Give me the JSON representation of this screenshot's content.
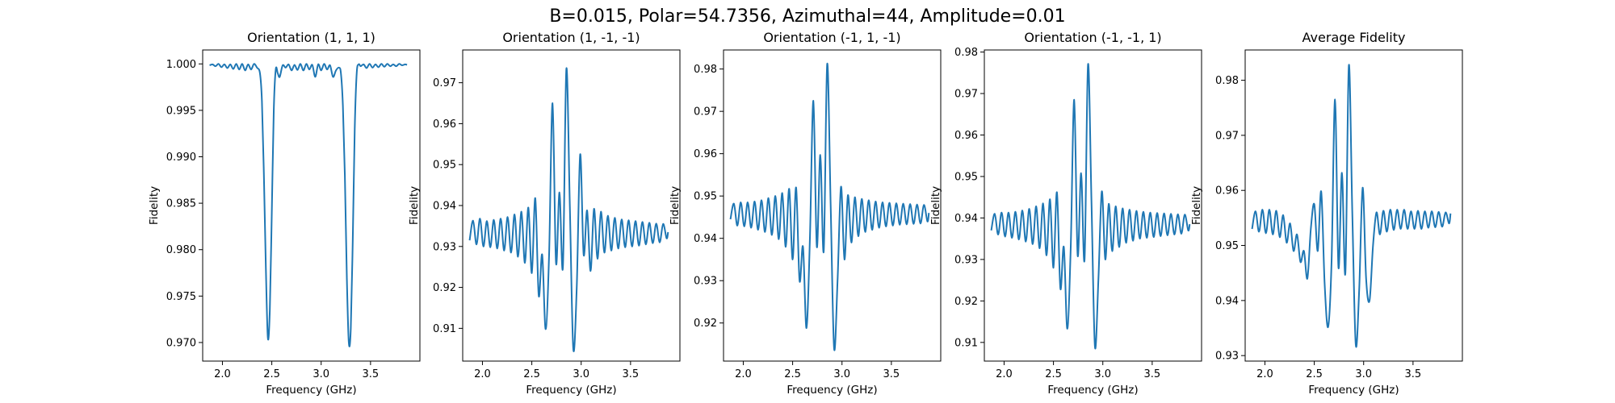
{
  "figure_title": "B=0.015, Polar=54.7356, Azimuthal=44, Amplitude=0.01",
  "line_color": "#1f77b4",
  "chart_data": [
    {
      "type": "line",
      "title": "Orientation (1, 1, 1)",
      "xlabel": "Frequency (GHz)",
      "ylabel": "Fidelity",
      "xlim": [
        1.8,
        4.0
      ],
      "ylim": [
        0.968,
        1.0015
      ],
      "xticks": [
        2.0,
        2.5,
        3.0,
        3.5
      ],
      "xtick_labels": [
        "2.0",
        "2.5",
        "3.0",
        "3.5"
      ],
      "yticks": [
        0.97,
        0.975,
        0.98,
        0.985,
        0.99,
        0.995,
        1.0
      ],
      "ytick_labels": [
        "0.970",
        "0.975",
        "0.980",
        "0.985",
        "0.990",
        "0.995",
        "1.000"
      ],
      "grid": false,
      "series": [
        {
          "x": [
            1.87,
            1.9,
            1.93,
            1.96,
            1.99,
            2.02,
            2.05,
            2.08,
            2.11,
            2.14,
            2.17,
            2.2,
            2.23,
            2.26,
            2.29,
            2.32,
            2.35,
            2.38,
            2.4,
            2.42,
            2.44,
            2.46,
            2.48,
            2.5,
            2.52,
            2.54,
            2.56,
            2.58,
            2.61,
            2.64,
            2.67,
            2.7,
            2.73,
            2.76,
            2.79,
            2.82,
            2.85,
            2.88,
            2.91,
            2.94,
            2.97,
            3.0,
            3.03,
            3.06,
            3.09,
            3.12,
            3.15,
            3.18,
            3.2,
            3.22,
            3.24,
            3.26,
            3.28,
            3.3,
            3.32,
            3.34,
            3.36,
            3.38,
            3.4,
            3.43,
            3.46,
            3.49,
            3.52,
            3.55,
            3.58,
            3.61,
            3.64,
            3.67,
            3.7,
            3.73,
            3.76,
            3.79,
            3.82,
            3.85,
            3.87
          ],
          "y": [
            0.99985,
            0.99995,
            0.99975,
            1.0,
            0.99965,
            0.99995,
            0.99955,
            0.99995,
            0.99945,
            1.0,
            0.9994,
            1.0,
            0.9993,
            0.99995,
            0.9994,
            1.0,
            0.9996,
            0.999,
            0.996,
            0.988,
            0.978,
            0.9705,
            0.9735,
            0.984,
            0.995,
            0.9994,
            0.999,
            0.9986,
            0.99985,
            0.9996,
            0.99995,
            0.9993,
            0.9999,
            0.99935,
            1.0,
            0.9993,
            1.0,
            0.9994,
            0.9999,
            0.9986,
            0.99995,
            0.9993,
            1.0,
            0.9994,
            0.99985,
            0.9986,
            0.9993,
            0.9996,
            0.999,
            0.9955,
            0.988,
            0.977,
            0.97,
            0.9715,
            0.981,
            0.993,
            0.999,
            0.99995,
            0.99975,
            0.99995,
            0.99955,
            1.0,
            0.9996,
            0.99995,
            0.99965,
            1.0,
            0.9997,
            1.0,
            0.99975,
            0.99995,
            0.99975,
            1.0,
            0.99985,
            0.99995,
            0.9999
          ]
        }
      ]
    },
    {
      "type": "line",
      "title": "Orientation (1, -1, -1)",
      "xlabel": "Frequency (GHz)",
      "ylabel": "Fidelity",
      "xlim": [
        1.8,
        4.0
      ],
      "ylim": [
        0.902,
        0.978
      ],
      "xticks": [
        2.0,
        2.5,
        3.0,
        3.5
      ],
      "xtick_labels": [
        "2.0",
        "2.5",
        "3.0",
        "3.5"
      ],
      "yticks": [
        0.91,
        0.92,
        0.93,
        0.94,
        0.95,
        0.96,
        0.97
      ],
      "ytick_labels": [
        "0.91",
        "0.92",
        "0.93",
        "0.94",
        "0.95",
        "0.96",
        "0.97"
      ],
      "grid": false,
      "series": [
        {
          "x": [
            1.87,
            1.905,
            1.94,
            1.975,
            2.01,
            2.045,
            2.08,
            2.115,
            2.15,
            2.185,
            2.22,
            2.255,
            2.29,
            2.325,
            2.36,
            2.395,
            2.43,
            2.465,
            2.5,
            2.535,
            2.57,
            2.605,
            2.64,
            2.675,
            2.71,
            2.745,
            2.78,
            2.815,
            2.85,
            2.885,
            2.92,
            2.955,
            2.99,
            3.025,
            3.06,
            3.095,
            3.13,
            3.165,
            3.2,
            3.235,
            3.27,
            3.305,
            3.34,
            3.375,
            3.41,
            3.445,
            3.48,
            3.515,
            3.55,
            3.585,
            3.62,
            3.655,
            3.69,
            3.725,
            3.76,
            3.795,
            3.83,
            3.865,
            3.88
          ],
          "y": [
            0.9315,
            0.9363,
            0.9305,
            0.9368,
            0.93,
            0.9362,
            0.9298,
            0.9365,
            0.9295,
            0.9368,
            0.929,
            0.9372,
            0.9285,
            0.9378,
            0.9275,
            0.9385,
            0.926,
            0.9395,
            0.9235,
            0.9418,
            0.918,
            0.928,
            0.9098,
            0.928,
            0.965,
            0.926,
            0.9432,
            0.925,
            0.9734,
            0.94,
            0.905,
            0.92,
            0.9525,
            0.928,
            0.9388,
            0.924,
            0.9392,
            0.927,
            0.9385,
            0.9285,
            0.9375,
            0.929,
            0.937,
            0.9295,
            0.9366,
            0.9298,
            0.9364,
            0.93,
            0.9362,
            0.9302,
            0.936,
            0.9305,
            0.9358,
            0.9308,
            0.9356,
            0.931,
            0.9355,
            0.932,
            0.9335
          ]
        }
      ]
    },
    {
      "type": "line",
      "title": "Orientation (-1, 1, -1)",
      "xlabel": "Frequency (GHz)",
      "ylabel": "Fidelity",
      "xlim": [
        1.8,
        4.0
      ],
      "ylim": [
        0.911,
        0.9845
      ],
      "xticks": [
        2.0,
        2.5,
        3.0,
        3.5
      ],
      "xtick_labels": [
        "2.0",
        "2.5",
        "3.0",
        "3.5"
      ],
      "yticks": [
        0.92,
        0.93,
        0.94,
        0.95,
        0.96,
        0.97,
        0.98
      ],
      "ytick_labels": [
        "0.92",
        "0.93",
        "0.94",
        "0.95",
        "0.96",
        "0.97",
        "0.98"
      ],
      "grid": false,
      "series": [
        {
          "x": [
            1.87,
            1.905,
            1.94,
            1.975,
            2.01,
            2.045,
            2.08,
            2.115,
            2.15,
            2.185,
            2.22,
            2.255,
            2.29,
            2.325,
            2.36,
            2.395,
            2.43,
            2.465,
            2.5,
            2.535,
            2.57,
            2.605,
            2.64,
            2.675,
            2.71,
            2.745,
            2.78,
            2.815,
            2.85,
            2.885,
            2.92,
            2.955,
            2.99,
            3.025,
            3.06,
            3.095,
            3.13,
            3.165,
            3.2,
            3.235,
            3.27,
            3.305,
            3.34,
            3.375,
            3.41,
            3.445,
            3.48,
            3.515,
            3.55,
            3.585,
            3.62,
            3.655,
            3.69,
            3.725,
            3.76,
            3.795,
            3.83,
            3.865,
            3.88
          ],
          "y": [
            0.9445,
            0.9482,
            0.943,
            0.9485,
            0.9428,
            0.9485,
            0.9425,
            0.9487,
            0.942,
            0.949,
            0.9415,
            0.9495,
            0.9408,
            0.95,
            0.9398,
            0.9507,
            0.938,
            0.9517,
            0.935,
            0.952,
            0.93,
            0.938,
            0.9188,
            0.94,
            0.9725,
            0.938,
            0.9597,
            0.937,
            0.9812,
            0.948,
            0.914,
            0.93,
            0.9522,
            0.935,
            0.9502,
            0.939,
            0.9497,
            0.9405,
            0.9493,
            0.9415,
            0.949,
            0.942,
            0.9487,
            0.9425,
            0.9485,
            0.9428,
            0.9484,
            0.943,
            0.9483,
            0.9432,
            0.9482,
            0.9433,
            0.9481,
            0.9434,
            0.948,
            0.9435,
            0.9479,
            0.944,
            0.946
          ]
        }
      ]
    },
    {
      "type": "line",
      "title": "Orientation (-1, -1, 1)",
      "xlabel": "Frequency (GHz)",
      "ylabel": "Fidelity",
      "xlim": [
        1.8,
        4.0
      ],
      "ylim": [
        0.9055,
        0.9805
      ],
      "xticks": [
        2.0,
        2.5,
        3.0,
        3.5
      ],
      "xtick_labels": [
        "2.0",
        "2.5",
        "3.0",
        "3.5"
      ],
      "yticks": [
        0.91,
        0.92,
        0.93,
        0.94,
        0.95,
        0.96,
        0.97,
        0.98
      ],
      "ytick_labels": [
        "0.91",
        "0.92",
        "0.93",
        "0.94",
        "0.95",
        "0.96",
        "0.97",
        "0.98"
      ],
      "grid": false,
      "series": [
        {
          "x": [
            1.87,
            1.905,
            1.94,
            1.975,
            2.01,
            2.045,
            2.08,
            2.115,
            2.15,
            2.185,
            2.22,
            2.255,
            2.29,
            2.325,
            2.36,
            2.395,
            2.43,
            2.465,
            2.5,
            2.535,
            2.57,
            2.605,
            2.64,
            2.675,
            2.71,
            2.745,
            2.78,
            2.815,
            2.85,
            2.885,
            2.92,
            2.955,
            2.99,
            3.025,
            3.06,
            3.095,
            3.13,
            3.165,
            3.2,
            3.235,
            3.27,
            3.305,
            3.34,
            3.375,
            3.41,
            3.445,
            3.48,
            3.515,
            3.55,
            3.585,
            3.62,
            3.655,
            3.69,
            3.725,
            3.76,
            3.795,
            3.83,
            3.865,
            3.88
          ],
          "y": [
            0.937,
            0.941,
            0.936,
            0.9413,
            0.9355,
            0.9413,
            0.9352,
            0.9415,
            0.9348,
            0.9418,
            0.9343,
            0.9422,
            0.9337,
            0.9428,
            0.9327,
            0.9435,
            0.931,
            0.9445,
            0.928,
            0.9462,
            0.923,
            0.933,
            0.9133,
            0.933,
            0.9685,
            0.931,
            0.9508,
            0.93,
            0.977,
            0.944,
            0.909,
            0.925,
            0.9464,
            0.93,
            0.9434,
            0.932,
            0.9428,
            0.933,
            0.9423,
            0.934,
            0.942,
            0.9345,
            0.9417,
            0.935,
            0.9415,
            0.9352,
            0.9413,
            0.9354,
            0.9412,
            0.9356,
            0.9411,
            0.9358,
            0.941,
            0.936,
            0.9409,
            0.9362,
            0.9408,
            0.937,
            0.9385
          ]
        }
      ]
    },
    {
      "type": "line",
      "title": "Average Fidelity",
      "xlabel": "Frequency (GHz)",
      "ylabel": "Fidelity",
      "xlim": [
        1.8,
        4.0
      ],
      "ylim": [
        0.929,
        0.9855
      ],
      "xticks": [
        2.0,
        2.5,
        3.0,
        3.5
      ],
      "xtick_labels": [
        "2.0",
        "2.5",
        "3.0",
        "3.5"
      ],
      "yticks": [
        0.93,
        0.94,
        0.95,
        0.96,
        0.97,
        0.98
      ],
      "ytick_labels": [
        "0.93",
        "0.94",
        "0.95",
        "0.96",
        "0.97",
        "0.98"
      ],
      "grid": false,
      "series": [
        {
          "x": [
            1.87,
            1.905,
            1.94,
            1.975,
            2.01,
            2.045,
            2.08,
            2.115,
            2.15,
            2.185,
            2.22,
            2.255,
            2.29,
            2.325,
            2.36,
            2.395,
            2.43,
            2.465,
            2.5,
            2.535,
            2.57,
            2.605,
            2.64,
            2.675,
            2.71,
            2.745,
            2.78,
            2.815,
            2.85,
            2.885,
            2.92,
            2.955,
            2.99,
            3.025,
            3.06,
            3.095,
            3.13,
            3.165,
            3.2,
            3.235,
            3.27,
            3.305,
            3.34,
            3.375,
            3.41,
            3.445,
            3.48,
            3.515,
            3.55,
            3.585,
            3.62,
            3.655,
            3.69,
            3.725,
            3.76,
            3.795,
            3.83,
            3.865,
            3.88
          ],
          "y": [
            0.953,
            0.9562,
            0.9525,
            0.9565,
            0.9522,
            0.9565,
            0.952,
            0.9563,
            0.9515,
            0.9555,
            0.9505,
            0.954,
            0.949,
            0.952,
            0.947,
            0.949,
            0.944,
            0.953,
            0.9575,
            0.949,
            0.9598,
            0.943,
            0.9352,
            0.947,
            0.9765,
            0.946,
            0.9632,
            0.945,
            0.9827,
            0.956,
            0.932,
            0.942,
            0.9605,
            0.944,
            0.94,
            0.95,
            0.956,
            0.952,
            0.9563,
            0.9525,
            0.9565,
            0.9528,
            0.9565,
            0.953,
            0.9565,
            0.953,
            0.9562,
            0.953,
            0.9563,
            0.953,
            0.9562,
            0.9532,
            0.9562,
            0.9533,
            0.9561,
            0.9534,
            0.956,
            0.954,
            0.9558
          ]
        }
      ]
    }
  ]
}
